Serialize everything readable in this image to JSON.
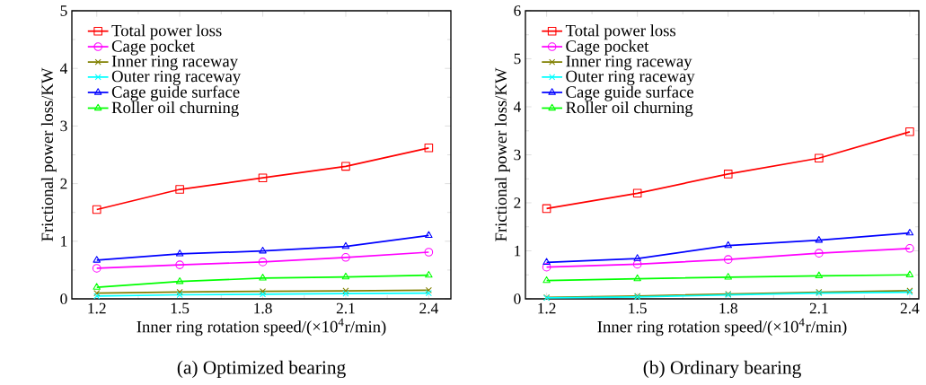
{
  "chart_data": [
    {
      "type": "line",
      "title": "(a) Optimized bearing",
      "xlabel": "Inner ring rotation speed/(×10$^{4}$r/min)",
      "ylabel": "Frictional power loss/KW",
      "x": [
        1.2,
        1.5,
        1.8,
        2.1,
        2.4
      ],
      "xlim": [
        1.11,
        2.48
      ],
      "xticks": [
        1.2,
        1.5,
        1.8,
        2.1,
        2.4
      ],
      "ylim": [
        0,
        5
      ],
      "yticks": [
        0,
        1,
        2,
        3,
        4,
        5
      ],
      "legend": "top left",
      "series": [
        {
          "name": "Total power loss",
          "color": "#ff0000",
          "marker": "square",
          "values": [
            1.55,
            1.9,
            2.1,
            2.3,
            2.62
          ]
        },
        {
          "name": "Cage pocket",
          "color": "#ff00ff",
          "marker": "circle",
          "values": [
            0.53,
            0.59,
            0.64,
            0.72,
            0.81
          ]
        },
        {
          "name": "Inner ring raceway",
          "color": "#808000",
          "marker": "cross",
          "values": [
            0.1,
            0.12,
            0.13,
            0.14,
            0.15
          ]
        },
        {
          "name": "Outer ring raceway",
          "color": "#00ffff",
          "marker": "cross",
          "values": [
            0.05,
            0.07,
            0.08,
            0.09,
            0.1
          ]
        },
        {
          "name": "Cage guide surface",
          "color": "#0000ff",
          "marker": "triangle",
          "values": [
            0.67,
            0.78,
            0.83,
            0.91,
            1.1
          ]
        },
        {
          "name": "Roller oil churning",
          "color": "#00ff00",
          "marker": "triangle",
          "values": [
            0.2,
            0.3,
            0.36,
            0.38,
            0.41
          ]
        }
      ]
    },
    {
      "type": "line",
      "title": "(b) Ordinary bearing",
      "xlabel": "Inner ring rotation speed/(×10$^{4}$r/min)",
      "ylabel": "Frictional power loss/KW",
      "x": [
        1.2,
        1.5,
        1.8,
        2.1,
        2.4
      ],
      "xlim": [
        1.13,
        2.43
      ],
      "xticks": [
        1.2,
        1.5,
        1.8,
        2.1,
        2.4
      ],
      "ylim": [
        0,
        6
      ],
      "yticks": [
        0,
        1,
        2,
        3,
        4,
        5,
        6
      ],
      "legend": "top left",
      "series": [
        {
          "name": "Total power loss",
          "color": "#ff0000",
          "marker": "square",
          "values": [
            1.88,
            2.2,
            2.6,
            2.93,
            3.48
          ]
        },
        {
          "name": "Cage pocket",
          "color": "#ff00ff",
          "marker": "circle",
          "values": [
            0.66,
            0.72,
            0.82,
            0.95,
            1.05
          ]
        },
        {
          "name": "Inner ring raceway",
          "color": "#808000",
          "marker": "cross",
          "values": [
            0.03,
            0.06,
            0.1,
            0.14,
            0.17
          ]
        },
        {
          "name": "Outer ring raceway",
          "color": "#00ffff",
          "marker": "cross",
          "values": [
            0.02,
            0.04,
            0.08,
            0.12,
            0.14
          ]
        },
        {
          "name": "Cage guide surface",
          "color": "#0000ff",
          "marker": "triangle",
          "values": [
            0.76,
            0.84,
            1.11,
            1.22,
            1.37
          ]
        },
        {
          "name": "Roller oil churning",
          "color": "#00ff00",
          "marker": "triangle",
          "values": [
            0.38,
            0.42,
            0.45,
            0.48,
            0.5
          ]
        }
      ]
    }
  ]
}
